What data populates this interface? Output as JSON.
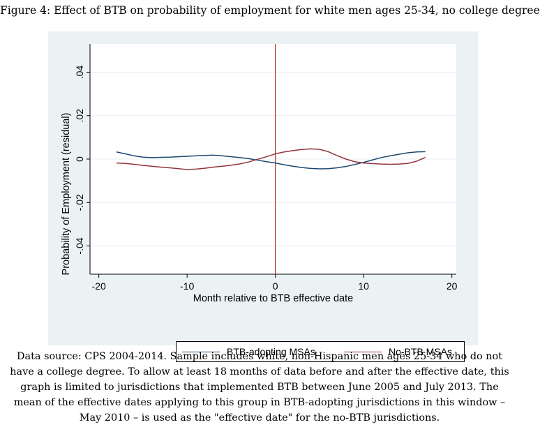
{
  "caption": "Figure 4: Effect of BTB on probability of employment for white men ages 25-34, no college degree",
  "note_lines": [
    "Data source: CPS 2004-2014. Sample includes white, non-Hispanic men ages 25-34 who do not",
    "have a college degree. To allow at least 18 months of data before and after the effective date, this",
    "graph is limited to jurisdictions that implemented BTB between June 2005 and July 2013. The",
    "mean of the effective dates applying to this group in BTB-adopting jurisdictions in this window –",
    "May 2010 – is used as the \"effective date\" for the no-BTB jurisdictions."
  ],
  "colors": {
    "btb": "#1a476f",
    "nobtb": "#90353b",
    "vline": "#c0392b",
    "outer_bg": "#eaf2f3",
    "plot_bg": "#ffffff"
  },
  "chart_data": {
    "type": "line",
    "title": "",
    "xlabel": "Month relative to BTB effective date",
    "ylabel": "Probability of Employment (residual)",
    "xlim": [
      -21,
      20.5
    ],
    "ylim": [
      -0.053,
      0.053
    ],
    "x_ticks": [
      -20,
      -10,
      0,
      10,
      20
    ],
    "x_tick_labels": [
      "-20",
      "-10",
      "0",
      "10",
      "20"
    ],
    "y_ticks": [
      -0.04,
      -0.02,
      0,
      0.02,
      0.04
    ],
    "y_tick_labels": [
      "-.04",
      "-.02",
      "0",
      ".02",
      ".04"
    ],
    "vertical_line_x": 0,
    "grid": "horizontal",
    "legend_position": "bottom",
    "series": [
      {
        "name": "BTB-adopting MSAs",
        "x": [
          -18,
          -17,
          -16,
          -15,
          -14,
          -13,
          -12,
          -11,
          -10,
          -9,
          -8,
          -7,
          -6,
          -5,
          -4,
          -3,
          -2,
          -1,
          0,
          1,
          2,
          3,
          4,
          5,
          6,
          7,
          8,
          9,
          10,
          11,
          12,
          13,
          14,
          15,
          16,
          17
        ],
        "y": [
          0.0033,
          0.0024,
          0.0015,
          0.0009,
          0.0007,
          0.0008,
          0.0009,
          0.0011,
          0.0013,
          0.0015,
          0.0017,
          0.0018,
          0.0015,
          0.0011,
          0.0007,
          0.0002,
          -0.0005,
          -0.0012,
          -0.0018,
          -0.0026,
          -0.0033,
          -0.0039,
          -0.0043,
          -0.0045,
          -0.0044,
          -0.004,
          -0.0034,
          -0.0025,
          -0.0015,
          -0.0004,
          0.0007,
          0.0015,
          0.0022,
          0.0029,
          0.0033,
          0.0034
        ]
      },
      {
        "name": "No-BTB MSAs",
        "x": [
          -18,
          -17,
          -16,
          -15,
          -14,
          -13,
          -12,
          -11,
          -10,
          -9,
          -8,
          -7,
          -6,
          -5,
          -4,
          -3,
          -2,
          -1,
          0,
          1,
          2,
          3,
          4,
          5,
          6,
          7,
          8,
          9,
          10,
          11,
          12,
          13,
          14,
          15,
          16,
          17
        ],
        "y": [
          -0.0018,
          -0.002,
          -0.0024,
          -0.0029,
          -0.0033,
          -0.0037,
          -0.004,
          -0.0044,
          -0.0048,
          -0.0046,
          -0.0042,
          -0.0037,
          -0.0033,
          -0.0028,
          -0.0022,
          -0.0013,
          -0.0001,
          0.0011,
          0.0024,
          0.0033,
          0.0039,
          0.0044,
          0.0047,
          0.0045,
          0.0034,
          0.0016,
          0.0,
          -0.0012,
          -0.0018,
          -0.0021,
          -0.0023,
          -0.0024,
          -0.0023,
          -0.002,
          -0.001,
          0.0008
        ]
      }
    ]
  }
}
